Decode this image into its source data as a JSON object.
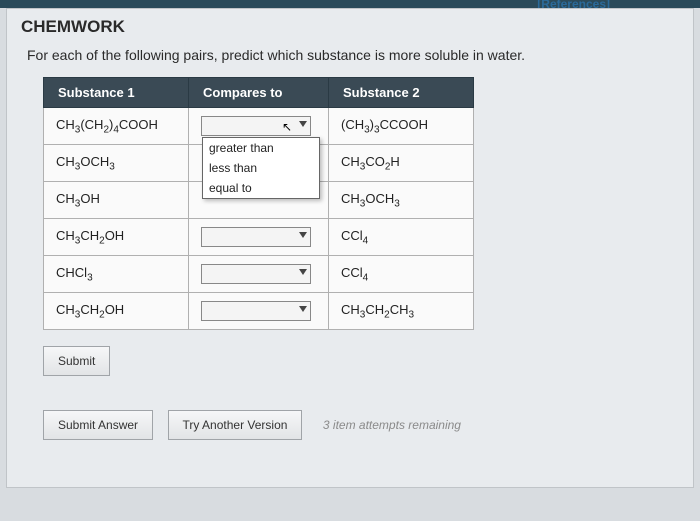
{
  "references_link": "[References]",
  "panel_title": "CHEMWORK",
  "instruction": "For each of the following pairs, predict which substance is more soluble in water.",
  "columns": {
    "c1": "Substance 1",
    "c2": "Compares to",
    "c3": "Substance 2"
  },
  "rows": [
    {
      "s1_html": "CH<sub>3</sub>(CH<sub>2</sub>)<sub>4</sub>COOH",
      "s2_html": "(CH<sub>3</sub>)<sub>3</sub>CCOOH",
      "open": true
    },
    {
      "s1_html": "CH<sub>3</sub>OCH<sub>3</sub>",
      "s2_html": "CH<sub>3</sub>CO<sub>2</sub>H",
      "hidden": true
    },
    {
      "s1_html": "CH<sub>3</sub>OH",
      "s2_html": "CH<sub>3</sub>OCH<sub>3</sub>",
      "hidden": true
    },
    {
      "s1_html": "CH<sub>3</sub>CH<sub>2</sub>OH",
      "s2_html": "CCl<sub>4</sub>"
    },
    {
      "s1_html": "CHCl<sub>3</sub>",
      "s2_html": "CCl<sub>4</sub>"
    },
    {
      "s1_html": "CH<sub>3</sub>CH<sub>2</sub>OH",
      "s2_html": "CH<sub>3</sub>CH<sub>2</sub>CH<sub>3</sub>"
    }
  ],
  "dropdown_options": [
    "greater than",
    "less than",
    "equal to"
  ],
  "buttons": {
    "submit": "Submit",
    "submit_answer": "Submit Answer",
    "try_another": "Try Another Version"
  },
  "attempts_text": "3 item attempts remaining",
  "colors": {
    "header_bg": "#3a4a55",
    "panel_bg": "#e8ebee",
    "page_bg": "#d8dce0"
  }
}
